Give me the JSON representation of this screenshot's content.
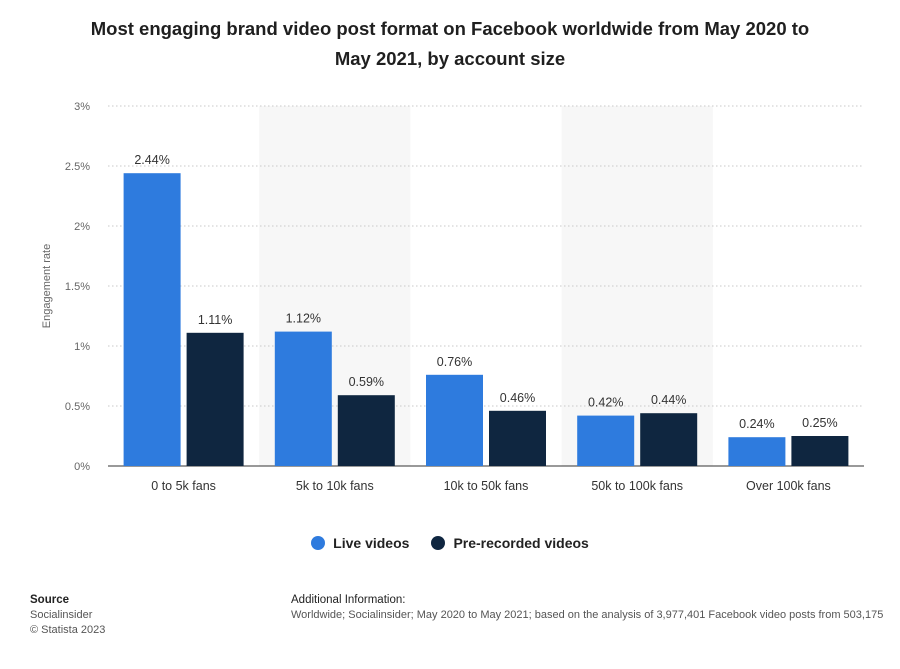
{
  "chart_data": {
    "type": "bar",
    "title": "Most engaging brand video post format on Facebook worldwide from May 2020 to May 2021, by account size",
    "title_lines": [
      "Most engaging brand video post format on Facebook worldwide from May 2020 to",
      "May 2021, by account size"
    ],
    "xlabel": "",
    "ylabel": "Engagement rate",
    "ylim": [
      0,
      3
    ],
    "yticks": [
      0,
      0.5,
      1,
      1.5,
      2,
      2.5,
      3
    ],
    "ytick_labels": [
      "0%",
      "0.5%",
      "1%",
      "1.5%",
      "2%",
      "2.5%",
      "3%"
    ],
    "categories": [
      "0 to 5k fans",
      "5k to 10k fans",
      "10k to 50k fans",
      "50k to 100k fans",
      "Over 100k fans"
    ],
    "series": [
      {
        "name": "Live videos",
        "color": "#2e7bde",
        "values": [
          2.44,
          1.12,
          0.76,
          0.42,
          0.24
        ],
        "labels": [
          "2.44%",
          "1.12%",
          "0.76%",
          "0.42%",
          "0.24%"
        ]
      },
      {
        "name": "Pre-recorded videos",
        "color": "#0f2640",
        "values": [
          1.11,
          0.59,
          0.46,
          0.44,
          0.25
        ],
        "labels": [
          "1.11%",
          "0.59%",
          "0.46%",
          "0.44%",
          "0.25%"
        ]
      }
    ],
    "grid": true,
    "legend": "bottom-center"
  },
  "footer": {
    "source_heading": "Source",
    "source_name": "Socialinsider",
    "copyright": "© Statista 2023",
    "additional_heading": "Additional Information:",
    "additional_text": "Worldwide; Socialinsider; May 2020 to May 2021; based on the analysis of 3,977,401 Facebook video posts from 503,175"
  }
}
